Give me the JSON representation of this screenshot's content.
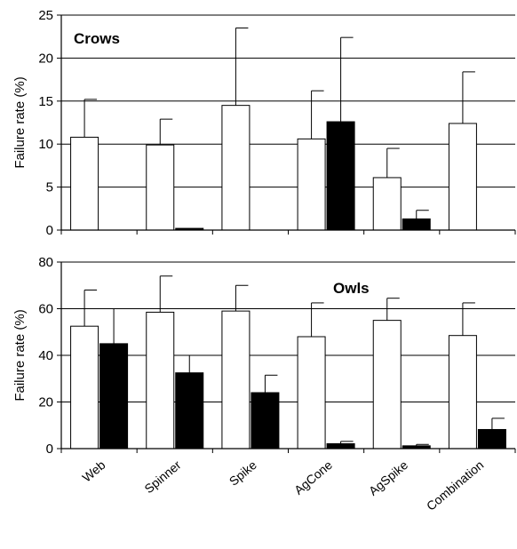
{
  "chart_data": [
    {
      "type": "bar",
      "title": "Crows",
      "title_position": "top-left",
      "ylabel": "Failure rate (%)",
      "xlabel": "",
      "ylim": [
        0,
        25
      ],
      "yticks": [
        0,
        5,
        10,
        15,
        20,
        25
      ],
      "grid": "horizontal",
      "categories": [
        "Web",
        "Spinner",
        "Spike",
        "AgCone",
        "AgSpike",
        "Combination"
      ],
      "series": [
        {
          "color": "#ffffff",
          "values": [
            10.8,
            9.9,
            14.5,
            10.6,
            6.1,
            12.4
          ],
          "errors": [
            4.4,
            3.0,
            9.0,
            5.6,
            3.4,
            6.0
          ]
        },
        {
          "color": "#000000",
          "values": [
            0,
            0.2,
            0,
            12.6,
            1.3,
            0
          ],
          "errors": [
            0,
            0,
            0,
            9.8,
            1.0,
            0
          ]
        }
      ]
    },
    {
      "type": "bar",
      "title": "Owls",
      "title_position": "top-right",
      "ylabel": "Failure rate (%)",
      "xlabel": "",
      "ylim": [
        0,
        80
      ],
      "yticks": [
        0,
        20,
        40,
        60,
        80
      ],
      "grid": "horizontal",
      "categories": [
        "Web",
        "Spinner",
        "Spike",
        "AgCone",
        "AgSpike",
        "Combination"
      ],
      "series": [
        {
          "color": "#ffffff",
          "values": [
            52.5,
            58.5,
            59,
            48,
            55,
            48.5
          ],
          "errors": [
            15.5,
            15.5,
            11,
            14.5,
            9.5,
            14
          ]
        },
        {
          "color": "#000000",
          "values": [
            45,
            32.5,
            24,
            2.1,
            1.2,
            8.2
          ],
          "errors": [
            15,
            7.5,
            7.5,
            1.0,
            0.6,
            4.8
          ]
        }
      ]
    }
  ]
}
